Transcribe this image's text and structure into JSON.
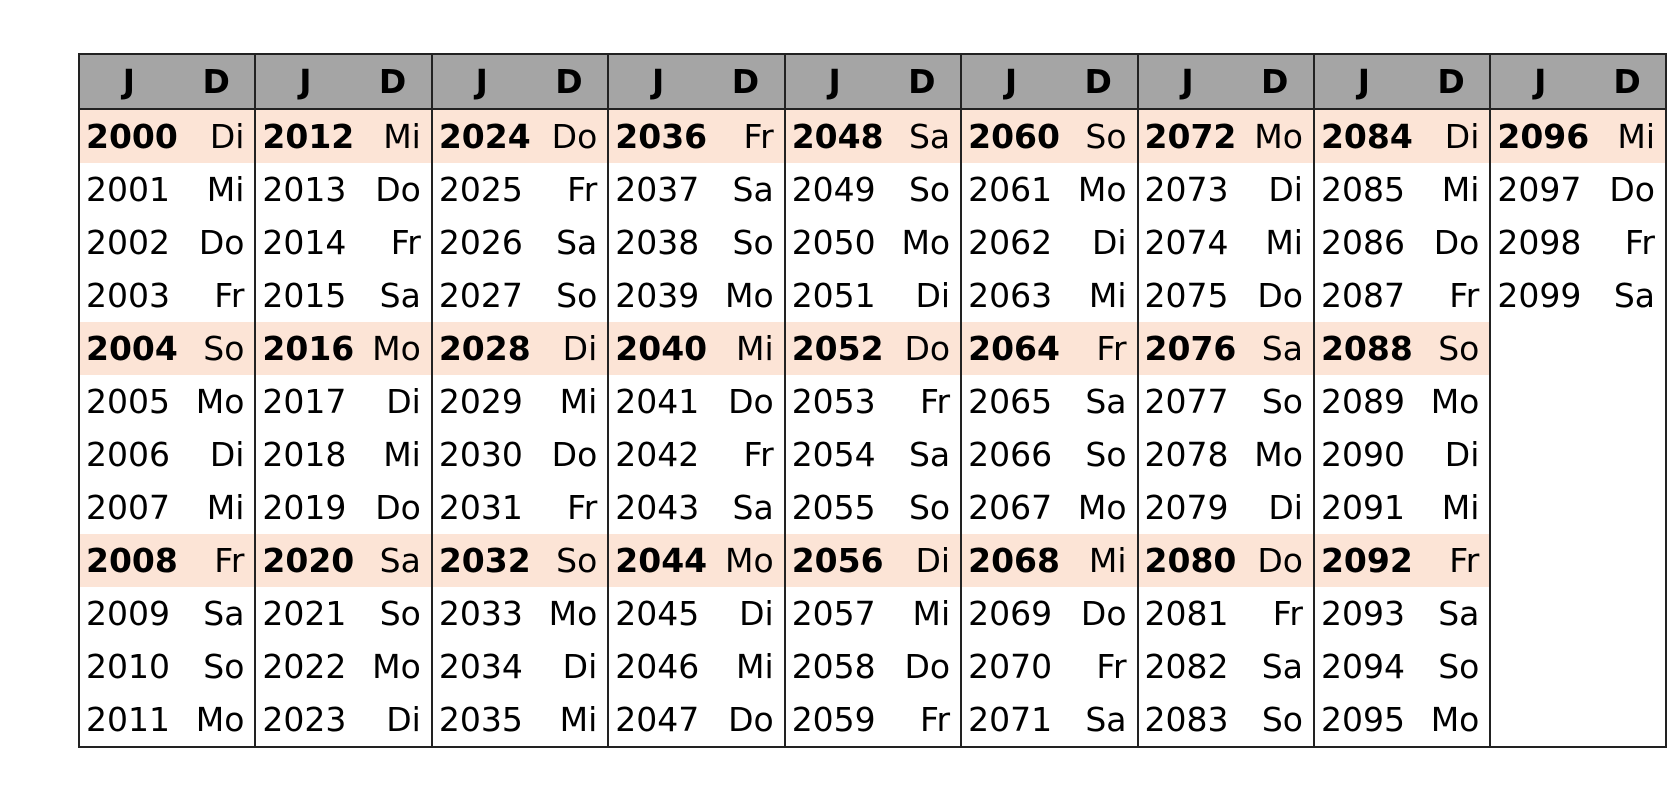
{
  "header": {
    "year_label": "J",
    "day_label": "D"
  },
  "leap_row_color": "#fce4d6",
  "header_color": "#a5a5a5",
  "columns": [
    {
      "rows": [
        [
          "2000",
          "Di"
        ],
        [
          "2001",
          "Mi"
        ],
        [
          "2002",
          "Do"
        ],
        [
          "2003",
          "Fr"
        ],
        [
          "2004",
          "So"
        ],
        [
          "2005",
          "Mo"
        ],
        [
          "2006",
          "Di"
        ],
        [
          "2007",
          "Mi"
        ],
        [
          "2008",
          "Fr"
        ],
        [
          "2009",
          "Sa"
        ],
        [
          "2010",
          "So"
        ],
        [
          "2011",
          "Mo"
        ]
      ]
    },
    {
      "rows": [
        [
          "2012",
          "Mi"
        ],
        [
          "2013",
          "Do"
        ],
        [
          "2014",
          "Fr"
        ],
        [
          "2015",
          "Sa"
        ],
        [
          "2016",
          "Mo"
        ],
        [
          "2017",
          "Di"
        ],
        [
          "2018",
          "Mi"
        ],
        [
          "2019",
          "Do"
        ],
        [
          "2020",
          "Sa"
        ],
        [
          "2021",
          "So"
        ],
        [
          "2022",
          "Mo"
        ],
        [
          "2023",
          "Di"
        ]
      ]
    },
    {
      "rows": [
        [
          "2024",
          "Do"
        ],
        [
          "2025",
          "Fr"
        ],
        [
          "2026",
          "Sa"
        ],
        [
          "2027",
          "So"
        ],
        [
          "2028",
          "Di"
        ],
        [
          "2029",
          "Mi"
        ],
        [
          "2030",
          "Do"
        ],
        [
          "2031",
          "Fr"
        ],
        [
          "2032",
          "So"
        ],
        [
          "2033",
          "Mo"
        ],
        [
          "2034",
          "Di"
        ],
        [
          "2035",
          "Mi"
        ]
      ]
    },
    {
      "rows": [
        [
          "2036",
          "Fr"
        ],
        [
          "2037",
          "Sa"
        ],
        [
          "2038",
          "So"
        ],
        [
          "2039",
          "Mo"
        ],
        [
          "2040",
          "Mi"
        ],
        [
          "2041",
          "Do"
        ],
        [
          "2042",
          "Fr"
        ],
        [
          "2043",
          "Sa"
        ],
        [
          "2044",
          "Mo"
        ],
        [
          "2045",
          "Di"
        ],
        [
          "2046",
          "Mi"
        ],
        [
          "2047",
          "Do"
        ]
      ]
    },
    {
      "rows": [
        [
          "2048",
          "Sa"
        ],
        [
          "2049",
          "So"
        ],
        [
          "2050",
          "Mo"
        ],
        [
          "2051",
          "Di"
        ],
        [
          "2052",
          "Do"
        ],
        [
          "2053",
          "Fr"
        ],
        [
          "2054",
          "Sa"
        ],
        [
          "2055",
          "So"
        ],
        [
          "2056",
          "Di"
        ],
        [
          "2057",
          "Mi"
        ],
        [
          "2058",
          "Do"
        ],
        [
          "2059",
          "Fr"
        ]
      ]
    },
    {
      "rows": [
        [
          "2060",
          "So"
        ],
        [
          "2061",
          "Mo"
        ],
        [
          "2062",
          "Di"
        ],
        [
          "2063",
          "Mi"
        ],
        [
          "2064",
          "Fr"
        ],
        [
          "2065",
          "Sa"
        ],
        [
          "2066",
          "So"
        ],
        [
          "2067",
          "Mo"
        ],
        [
          "2068",
          "Mi"
        ],
        [
          "2069",
          "Do"
        ],
        [
          "2070",
          "Fr"
        ],
        [
          "2071",
          "Sa"
        ]
      ]
    },
    {
      "rows": [
        [
          "2072",
          "Mo"
        ],
        [
          "2073",
          "Di"
        ],
        [
          "2074",
          "Mi"
        ],
        [
          "2075",
          "Do"
        ],
        [
          "2076",
          "Sa"
        ],
        [
          "2077",
          "So"
        ],
        [
          "2078",
          "Mo"
        ],
        [
          "2079",
          "Di"
        ],
        [
          "2080",
          "Do"
        ],
        [
          "2081",
          "Fr"
        ],
        [
          "2082",
          "Sa"
        ],
        [
          "2083",
          "So"
        ]
      ]
    },
    {
      "rows": [
        [
          "2084",
          "Di"
        ],
        [
          "2085",
          "Mi"
        ],
        [
          "2086",
          "Do"
        ],
        [
          "2087",
          "Fr"
        ],
        [
          "2088",
          "So"
        ],
        [
          "2089",
          "Mo"
        ],
        [
          "2090",
          "Di"
        ],
        [
          "2091",
          "Mi"
        ],
        [
          "2092",
          "Fr"
        ],
        [
          "2093",
          "Sa"
        ],
        [
          "2094",
          "So"
        ],
        [
          "2095",
          "Mo"
        ]
      ]
    },
    {
      "rows": [
        [
          "2096",
          "Mi"
        ],
        [
          "2097",
          "Do"
        ],
        [
          "2098",
          "Fr"
        ],
        [
          "2099",
          "Sa"
        ]
      ]
    }
  ]
}
